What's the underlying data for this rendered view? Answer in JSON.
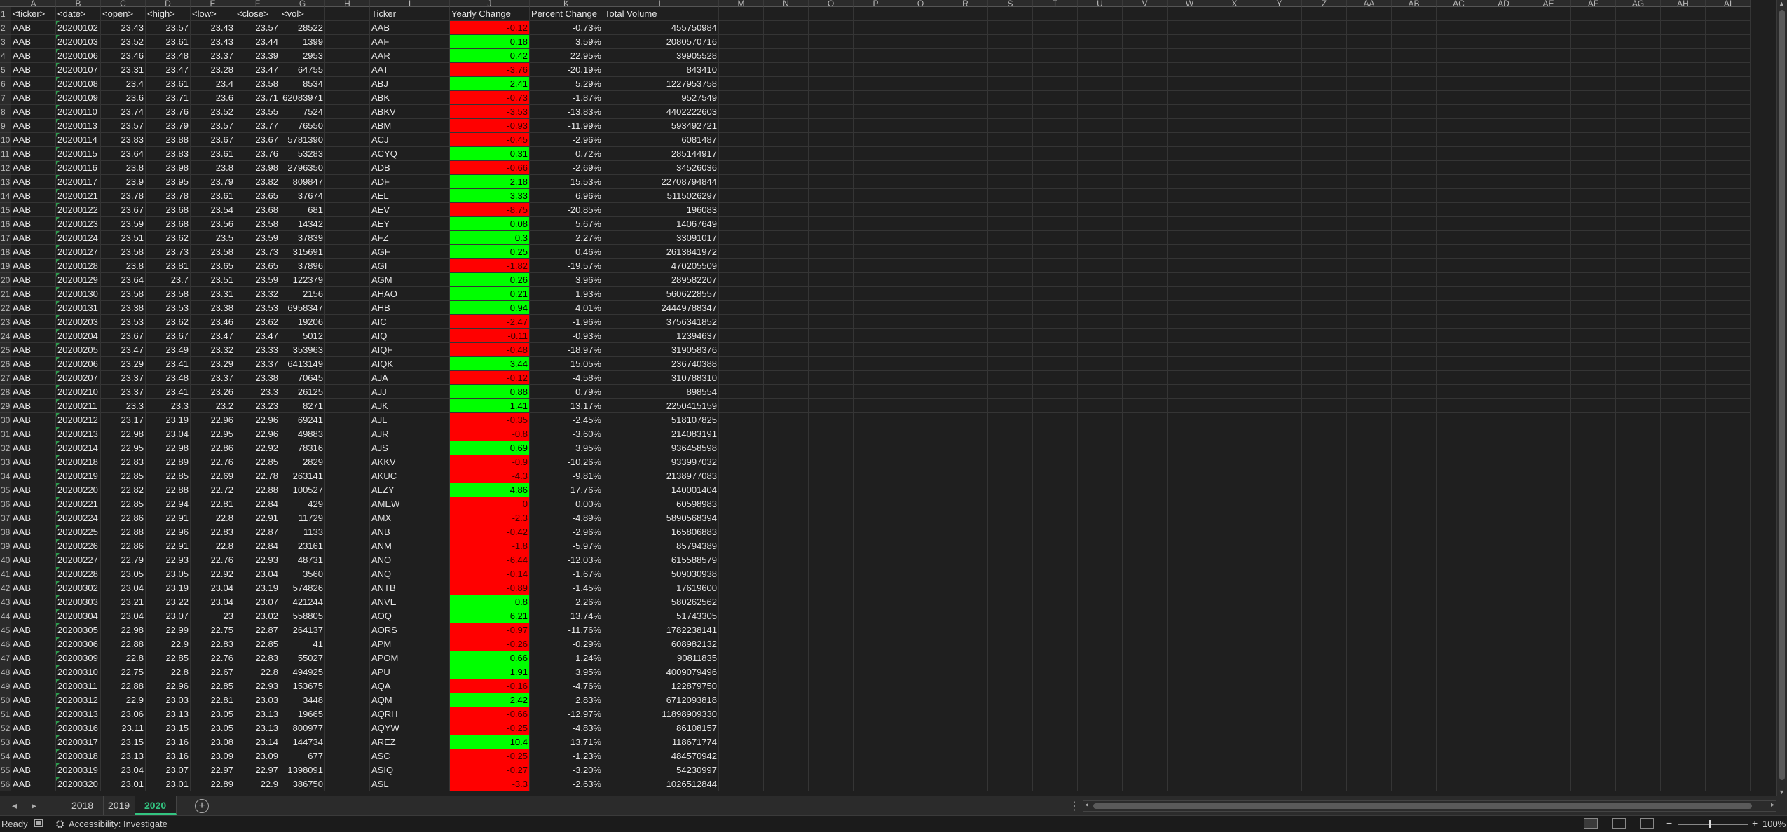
{
  "columns": [
    "A",
    "B",
    "C",
    "D",
    "E",
    "F",
    "G",
    "H",
    "I",
    "J",
    "K",
    "L",
    "M",
    "N",
    "O",
    "P",
    "Q",
    "R",
    "S",
    "T",
    "U",
    "V",
    "W",
    "X",
    "Y",
    "Z",
    "AA",
    "AB",
    "AC",
    "AD",
    "AE",
    "AF",
    "AG",
    "AH",
    "AI"
  ],
  "header_row": {
    "A": "<ticker>",
    "B": "<date>",
    "C": "<open>",
    "D": "<high>",
    "E": "<low>",
    "F": "<close>",
    "G": "<vol>",
    "I": "Ticker",
    "J": "Yearly Change",
    "K": "Percent Change",
    "L": "Total Volume"
  },
  "stock_rows": [
    [
      "AAB",
      "20200102",
      "23.43",
      "23.57",
      "23.43",
      "23.57",
      "28522"
    ],
    [
      "AAB",
      "20200103",
      "23.52",
      "23.61",
      "23.43",
      "23.44",
      "1399"
    ],
    [
      "AAB",
      "20200106",
      "23.46",
      "23.48",
      "23.37",
      "23.39",
      "2953"
    ],
    [
      "AAB",
      "20200107",
      "23.31",
      "23.47",
      "23.28",
      "23.47",
      "64755"
    ],
    [
      "AAB",
      "20200108",
      "23.4",
      "23.61",
      "23.4",
      "23.58",
      "8534"
    ],
    [
      "AAB",
      "20200109",
      "23.6",
      "23.71",
      "23.6",
      "23.71",
      "62083971"
    ],
    [
      "AAB",
      "20200110",
      "23.74",
      "23.76",
      "23.52",
      "23.55",
      "7524"
    ],
    [
      "AAB",
      "20200113",
      "23.57",
      "23.79",
      "23.57",
      "23.77",
      "76550"
    ],
    [
      "AAB",
      "20200114",
      "23.83",
      "23.88",
      "23.67",
      "23.67",
      "5781390"
    ],
    [
      "AAB",
      "20200115",
      "23.64",
      "23.83",
      "23.61",
      "23.76",
      "53283"
    ],
    [
      "AAB",
      "20200116",
      "23.8",
      "23.98",
      "23.8",
      "23.98",
      "2796350"
    ],
    [
      "AAB",
      "20200117",
      "23.9",
      "23.95",
      "23.79",
      "23.82",
      "809847"
    ],
    [
      "AAB",
      "20200121",
      "23.78",
      "23.78",
      "23.61",
      "23.65",
      "37674"
    ],
    [
      "AAB",
      "20200122",
      "23.67",
      "23.68",
      "23.54",
      "23.68",
      "681"
    ],
    [
      "AAB",
      "20200123",
      "23.59",
      "23.68",
      "23.56",
      "23.58",
      "14342"
    ],
    [
      "AAB",
      "20200124",
      "23.51",
      "23.62",
      "23.5",
      "23.59",
      "37839"
    ],
    [
      "AAB",
      "20200127",
      "23.58",
      "23.73",
      "23.58",
      "23.73",
      "315691"
    ],
    [
      "AAB",
      "20200128",
      "23.8",
      "23.81",
      "23.65",
      "23.65",
      "37896"
    ],
    [
      "AAB",
      "20200129",
      "23.64",
      "23.7",
      "23.51",
      "23.59",
      "122379"
    ],
    [
      "AAB",
      "20200130",
      "23.58",
      "23.58",
      "23.31",
      "23.32",
      "2156"
    ],
    [
      "AAB",
      "20200131",
      "23.38",
      "23.53",
      "23.38",
      "23.53",
      "6958347"
    ],
    [
      "AAB",
      "20200203",
      "23.53",
      "23.62",
      "23.46",
      "23.62",
      "19206"
    ],
    [
      "AAB",
      "20200204",
      "23.67",
      "23.67",
      "23.47",
      "23.47",
      "5012"
    ],
    [
      "AAB",
      "20200205",
      "23.47",
      "23.49",
      "23.32",
      "23.33",
      "353963"
    ],
    [
      "AAB",
      "20200206",
      "23.29",
      "23.41",
      "23.29",
      "23.37",
      "6413149"
    ],
    [
      "AAB",
      "20200207",
      "23.37",
      "23.48",
      "23.37",
      "23.38",
      "70645"
    ],
    [
      "AAB",
      "20200210",
      "23.37",
      "23.41",
      "23.26",
      "23.3",
      "26125"
    ],
    [
      "AAB",
      "20200211",
      "23.3",
      "23.3",
      "23.2",
      "23.23",
      "8271"
    ],
    [
      "AAB",
      "20200212",
      "23.17",
      "23.19",
      "22.96",
      "22.96",
      "69241"
    ],
    [
      "AAB",
      "20200213",
      "22.98",
      "23.04",
      "22.95",
      "22.96",
      "49883"
    ],
    [
      "AAB",
      "20200214",
      "22.95",
      "22.98",
      "22.86",
      "22.92",
      "78316"
    ],
    [
      "AAB",
      "20200218",
      "22.83",
      "22.89",
      "22.76",
      "22.85",
      "2829"
    ],
    [
      "AAB",
      "20200219",
      "22.85",
      "22.85",
      "22.69",
      "22.78",
      "263141"
    ],
    [
      "AAB",
      "20200220",
      "22.82",
      "22.88",
      "22.72",
      "22.88",
      "100527"
    ],
    [
      "AAB",
      "20200221",
      "22.85",
      "22.94",
      "22.81",
      "22.84",
      "429"
    ],
    [
      "AAB",
      "20200224",
      "22.86",
      "22.91",
      "22.8",
      "22.91",
      "11729"
    ],
    [
      "AAB",
      "20200225",
      "22.88",
      "22.96",
      "22.83",
      "22.87",
      "1133"
    ],
    [
      "AAB",
      "20200226",
      "22.86",
      "22.91",
      "22.8",
      "22.84",
      "23161"
    ],
    [
      "AAB",
      "20200227",
      "22.79",
      "22.93",
      "22.76",
      "22.93",
      "48731"
    ],
    [
      "AAB",
      "20200228",
      "23.05",
      "23.05",
      "22.92",
      "23.04",
      "3560"
    ],
    [
      "AAB",
      "20200302",
      "23.04",
      "23.19",
      "23.04",
      "23.19",
      "574826"
    ],
    [
      "AAB",
      "20200303",
      "23.21",
      "23.22",
      "23.04",
      "23.07",
      "421244"
    ],
    [
      "AAB",
      "20200304",
      "23.04",
      "23.07",
      "23",
      "23.02",
      "558805"
    ],
    [
      "AAB",
      "20200305",
      "22.98",
      "22.99",
      "22.75",
      "22.87",
      "264137"
    ],
    [
      "AAB",
      "20200306",
      "22.88",
      "22.9",
      "22.83",
      "22.85",
      "41"
    ],
    [
      "AAB",
      "20200309",
      "22.8",
      "22.85",
      "22.76",
      "22.83",
      "55027"
    ],
    [
      "AAB",
      "20200310",
      "22.75",
      "22.8",
      "22.67",
      "22.8",
      "494925"
    ],
    [
      "AAB",
      "20200311",
      "22.88",
      "22.96",
      "22.85",
      "22.93",
      "153675"
    ],
    [
      "AAB",
      "20200312",
      "22.9",
      "23.03",
      "22.81",
      "23.03",
      "3448"
    ],
    [
      "AAB",
      "20200313",
      "23.06",
      "23.13",
      "23.05",
      "23.13",
      "19665"
    ],
    [
      "AAB",
      "20200316",
      "23.11",
      "23.15",
      "23.05",
      "23.13",
      "800977"
    ],
    [
      "AAB",
      "20200317",
      "23.15",
      "23.16",
      "23.08",
      "23.14",
      "144734"
    ],
    [
      "AAB",
      "20200318",
      "23.13",
      "23.16",
      "23.09",
      "23.09",
      "677"
    ],
    [
      "AAB",
      "20200319",
      "23.04",
      "23.07",
      "22.97",
      "22.97",
      "1398091"
    ],
    [
      "AAB",
      "20200320",
      "23.01",
      "23.01",
      "22.89",
      "22.9",
      "386750"
    ]
  ],
  "summary_rows": [
    [
      "AAB",
      "-0.12",
      "-0.73%",
      "455750984",
      "neg"
    ],
    [
      "AAF",
      "0.18",
      "3.59%",
      "2080570716",
      "pos"
    ],
    [
      "AAR",
      "0.42",
      "22.95%",
      "39905528",
      "pos"
    ],
    [
      "AAT",
      "-3.76",
      "-20.19%",
      "843410",
      "neg"
    ],
    [
      "ABJ",
      "2.41",
      "5.29%",
      "1227953758",
      "pos"
    ],
    [
      "ABK",
      "-0.73",
      "-1.87%",
      "9527549",
      "neg"
    ],
    [
      "ABKV",
      "-3.53",
      "-13.83%",
      "4402222603",
      "neg"
    ],
    [
      "ABM",
      "-0.93",
      "-11.99%",
      "593492721",
      "neg"
    ],
    [
      "ACJ",
      "-0.45",
      "-2.96%",
      "6081487",
      "neg"
    ],
    [
      "ACYQ",
      "0.31",
      "0.72%",
      "285144917",
      "pos"
    ],
    [
      "ADB",
      "-0.66",
      "-2.69%",
      "34526036",
      "neg"
    ],
    [
      "ADF",
      "2.18",
      "15.53%",
      "22708794844",
      "pos"
    ],
    [
      "AEL",
      "3.33",
      "6.96%",
      "5115026297",
      "pos"
    ],
    [
      "AEV",
      "-8.75",
      "-20.85%",
      "196083",
      "neg"
    ],
    [
      "AEY",
      "0.08",
      "5.67%",
      "14067649",
      "pos"
    ],
    [
      "AFZ",
      "0.3",
      "2.27%",
      "33091017",
      "pos"
    ],
    [
      "AGF",
      "0.25",
      "0.46%",
      "2613841972",
      "pos"
    ],
    [
      "AGI",
      "-1.82",
      "-19.57%",
      "470205509",
      "neg"
    ],
    [
      "AGM",
      "0.26",
      "3.96%",
      "289582207",
      "pos"
    ],
    [
      "AHAO",
      "0.21",
      "1.93%",
      "5606228557",
      "pos"
    ],
    [
      "AHB",
      "0.94",
      "4.01%",
      "24449788347",
      "pos"
    ],
    [
      "AIC",
      "-2.47",
      "-1.96%",
      "3756341852",
      "neg"
    ],
    [
      "AIQ",
      "-0.11",
      "-0.93%",
      "12394637",
      "neg"
    ],
    [
      "AIQF",
      "-0.48",
      "-18.97%",
      "319058376",
      "neg"
    ],
    [
      "AIQK",
      "3.44",
      "15.05%",
      "236740388",
      "pos"
    ],
    [
      "AJA",
      "-0.12",
      "-4.58%",
      "310788310",
      "neg"
    ],
    [
      "AJJ",
      "0.88",
      "0.79%",
      "898554",
      "pos"
    ],
    [
      "AJK",
      "1.41",
      "13.17%",
      "2250415159",
      "pos"
    ],
    [
      "AJL",
      "-0.35",
      "-2.45%",
      "518107825",
      "neg"
    ],
    [
      "AJR",
      "-0.8",
      "-3.60%",
      "214083191",
      "neg"
    ],
    [
      "AJS",
      "0.69",
      "3.95%",
      "936458598",
      "pos"
    ],
    [
      "AKKV",
      "-0.9",
      "-10.26%",
      "933997032",
      "neg"
    ],
    [
      "AKUC",
      "-4.3",
      "-9.81%",
      "2138977083",
      "neg"
    ],
    [
      "ALZY",
      "4.86",
      "17.76%",
      "140001404",
      "pos"
    ],
    [
      "AMEW",
      "0",
      "0.00%",
      "60598983",
      "neg"
    ],
    [
      "AMX",
      "-2.3",
      "-4.89%",
      "5890568394",
      "neg"
    ],
    [
      "ANB",
      "-0.42",
      "-2.96%",
      "165806883",
      "neg"
    ],
    [
      "ANM",
      "-1.8",
      "-5.97%",
      "85794389",
      "neg"
    ],
    [
      "ANO",
      "-6.44",
      "-12.03%",
      "615588579",
      "neg"
    ],
    [
      "ANQ",
      "-0.14",
      "-1.67%",
      "509030938",
      "neg"
    ],
    [
      "ANTB",
      "-0.89",
      "-1.45%",
      "17619600",
      "neg"
    ],
    [
      "ANVE",
      "0.8",
      "2.26%",
      "580262562",
      "pos"
    ],
    [
      "AOQ",
      "6.21",
      "13.74%",
      "51743305",
      "pos"
    ],
    [
      "AORS",
      "-0.97",
      "-11.76%",
      "1782238141",
      "neg"
    ],
    [
      "APM",
      "-0.26",
      "-0.29%",
      "608982132",
      "neg"
    ],
    [
      "APOM",
      "0.66",
      "1.24%",
      "90811835",
      "pos"
    ],
    [
      "APU",
      "1.91",
      "3.95%",
      "4009079496",
      "pos"
    ],
    [
      "AQA",
      "-0.16",
      "-4.76%",
      "122879750",
      "neg"
    ],
    [
      "AQM",
      "2.42",
      "2.83%",
      "6712093818",
      "pos"
    ],
    [
      "AQRH",
      "-0.66",
      "-12.97%",
      "11898909330",
      "neg"
    ],
    [
      "AQYW",
      "-0.25",
      "-4.83%",
      "86108157",
      "neg"
    ],
    [
      "AREZ",
      "10.4",
      "13.71%",
      "118671774",
      "pos"
    ],
    [
      "ASC",
      "-0.25",
      "-1.23%",
      "484570942",
      "neg"
    ],
    [
      "ASIQ",
      "-0.27",
      "-3.20%",
      "54230997",
      "neg"
    ],
    [
      "ASL",
      "-3.3",
      "-2.63%",
      "1026512844",
      "neg"
    ]
  ],
  "sheet_tabs": [
    "2018",
    "2019",
    "2020"
  ],
  "active_sheet": "2020",
  "status": {
    "ready": "Ready",
    "accessibility": "Accessibility: Investigate",
    "zoom": "100%"
  },
  "colors": {
    "positive": "#00ff00",
    "negative": "#ff0000",
    "active_tab": "#33c481"
  },
  "icons": {
    "macro": "macro-recording-icon",
    "accessibility": "accessibility-icon",
    "add_sheet": "add-sheet-icon"
  }
}
